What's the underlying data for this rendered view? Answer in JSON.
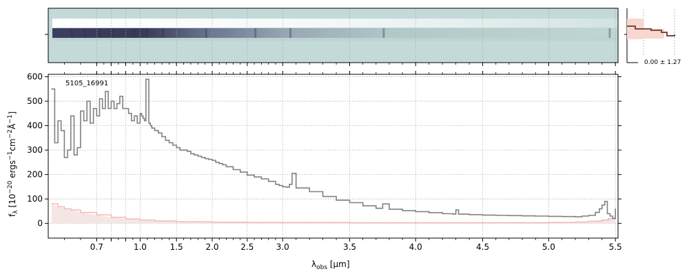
{
  "figure": {
    "object_label": "5105_16991",
    "xlabel_main": "λ",
    "xlabel_sub": "obs",
    "xlabel_unit": " [μm]",
    "ylabel_f": "f",
    "ylabel_sub": "λ",
    "ylabel_unit_a": " [10",
    "ylabel_exp1": "−20",
    "ylabel_unit_b": " ergs",
    "ylabel_exp2": "−1",
    "ylabel_unit_c": "cm",
    "ylabel_exp3": "−2",
    "ylabel_unit_d": "Å",
    "ylabel_exp4": "−1",
    "ylabel_unit_e": "]",
    "side_annotation": "0.00 ± 1.27"
  },
  "chart_data": [
    {
      "type": "line",
      "panel": "1d-spectrum",
      "x_axis_scale": "resolution-stretched",
      "xlim": [
        0.55,
        5.52
      ],
      "ylim": [
        -60,
        610
      ],
      "x_ticks": [
        0.7,
        0.8,
        0.9,
        1.0,
        1.5,
        2.0,
        2.5,
        3.0,
        3.5,
        4.0,
        4.5,
        5.0,
        5.5
      ],
      "x_tick_labels": [
        "0.7",
        "",
        "",
        "1.0",
        "1.5",
        "2.0",
        "2.5",
        "3.0",
        "3.5",
        "4.0",
        "4.5",
        "5.0",
        "5.5"
      ],
      "y_ticks": [
        0,
        100,
        200,
        300,
        400,
        500,
        600
      ],
      "y_tick_labels": [
        "0",
        "100",
        "200",
        "300",
        "400",
        "500",
        "600"
      ],
      "grid": true,
      "colors": {
        "flux": "#808080",
        "error": "#f4b8b8",
        "errfill": "#f5e6e6"
      },
      "series": [
        {
          "role": "flux",
          "x": [
            0.56,
            0.57,
            0.58,
            0.59,
            0.6,
            0.61,
            0.62,
            0.63,
            0.64,
            0.65,
            0.66,
            0.67,
            0.68,
            0.69,
            0.7,
            0.72,
            0.74,
            0.76,
            0.78,
            0.8,
            0.82,
            0.84,
            0.86,
            0.88,
            0.9,
            0.92,
            0.94,
            0.96,
            0.98,
            1.0,
            1.02,
            1.04,
            1.06,
            1.08,
            1.1,
            1.12,
            1.14,
            1.16,
            1.2,
            1.25,
            1.3,
            1.35,
            1.4,
            1.45,
            1.5,
            1.55,
            1.6,
            1.65,
            1.7,
            1.75,
            1.8,
            1.85,
            1.9,
            1.95,
            2.0,
            2.05,
            2.1,
            2.15,
            2.2,
            2.3,
            2.4,
            2.5,
            2.6,
            2.7,
            2.8,
            2.9,
            2.95,
            3.0,
            3.03,
            3.05,
            3.07,
            3.1,
            3.2,
            3.3,
            3.4,
            3.5,
            3.6,
            3.7,
            3.75,
            3.8,
            3.9,
            4.0,
            4.1,
            4.2,
            4.28,
            4.3,
            4.32,
            4.4,
            4.5,
            4.6,
            4.7,
            4.8,
            4.9,
            5.0,
            5.1,
            5.2,
            5.25,
            5.3,
            5.35,
            5.38,
            5.4,
            5.42,
            5.44,
            5.46,
            5.48,
            5.5
          ],
          "y": [
            550,
            330,
            420,
            380,
            270,
            300,
            440,
            280,
            310,
            460,
            420,
            500,
            410,
            470,
            440,
            510,
            470,
            540,
            470,
            500,
            470,
            490,
            520,
            470,
            470,
            450,
            420,
            440,
            410,
            450,
            440,
            430,
            420,
            590,
            590,
            410,
            400,
            390,
            380,
            370,
            355,
            340,
            330,
            320,
            310,
            300,
            300,
            295,
            285,
            280,
            275,
            270,
            265,
            262,
            258,
            250,
            245,
            240,
            232,
            220,
            210,
            198,
            190,
            182,
            172,
            160,
            155,
            150,
            148,
            160,
            205,
            145,
            130,
            110,
            95,
            85,
            72,
            62,
            80,
            58,
            52,
            48,
            44,
            40,
            38,
            55,
            38,
            36,
            34,
            33,
            32,
            31,
            30,
            29,
            28,
            27,
            30,
            33,
            45,
            60,
            75,
            90,
            40,
            30,
            20,
            60
          ]
        },
        {
          "role": "error",
          "x": [
            0.56,
            0.58,
            0.6,
            0.62,
            0.65,
            0.7,
            0.8,
            0.9,
            1.0,
            1.2,
            1.5,
            2.0,
            2.5,
            3.0,
            3.5,
            4.0,
            4.5,
            5.0,
            5.2,
            5.3,
            5.4,
            5.45,
            5.5
          ],
          "y": [
            80,
            68,
            60,
            55,
            45,
            35,
            25,
            18,
            14,
            10,
            7,
            5,
            4,
            3.5,
            3,
            3,
            3,
            4,
            6,
            9,
            14,
            20,
            28
          ]
        }
      ]
    },
    {
      "type": "heatmap",
      "panel": "2d-spectrum",
      "description_rows": [
        "bright",
        "trace-dark"
      ],
      "colors": {
        "background": "#c3dad8",
        "bright": "#f4f8f8",
        "dark": "#383a58",
        "mid": "#7c8aa0"
      }
    },
    {
      "type": "bar",
      "panel": "spatial-profile",
      "annotation": "0.00 ± 1.27",
      "colors": {
        "profile": "#7a4a40",
        "fill": "#f7d7cf"
      }
    }
  ]
}
